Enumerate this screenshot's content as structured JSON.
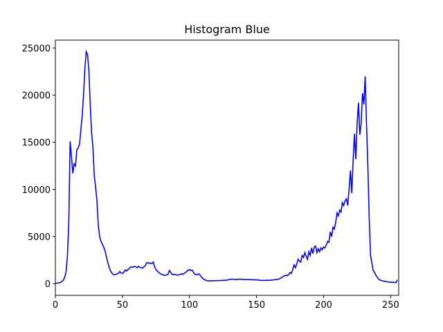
{
  "chart_data": {
    "type": "line",
    "title": "Histogram Blue",
    "x": [
      0,
      1,
      2,
      3,
      4,
      5,
      6,
      7,
      8,
      9,
      10,
      11,
      12,
      13,
      14,
      15,
      16,
      17,
      18,
      19,
      20,
      21,
      22,
      23,
      24,
      25,
      26,
      27,
      28,
      29,
      30,
      31,
      32,
      33,
      34,
      35,
      36,
      37,
      38,
      39,
      40,
      41,
      42,
      43,
      44,
      45,
      46,
      47,
      48,
      49,
      50,
      51,
      52,
      53,
      54,
      55,
      56,
      57,
      58,
      59,
      60,
      61,
      62,
      63,
      64,
      65,
      66,
      67,
      68,
      69,
      70,
      71,
      72,
      73,
      74,
      75,
      76,
      77,
      78,
      79,
      80,
      81,
      82,
      83,
      84,
      85,
      86,
      87,
      88,
      89,
      90,
      91,
      92,
      93,
      94,
      95,
      96,
      97,
      98,
      99,
      100,
      101,
      102,
      103,
      104,
      105,
      106,
      107,
      108,
      109,
      110,
      111,
      112,
      113,
      114,
      115,
      116,
      117,
      118,
      119,
      120,
      121,
      122,
      123,
      124,
      125,
      126,
      127,
      128,
      129,
      130,
      131,
      132,
      133,
      134,
      135,
      136,
      137,
      138,
      139,
      140,
      141,
      142,
      143,
      144,
      145,
      146,
      147,
      148,
      149,
      150,
      151,
      152,
      153,
      154,
      155,
      156,
      157,
      158,
      159,
      160,
      161,
      162,
      163,
      164,
      165,
      166,
      167,
      168,
      169,
      170,
      171,
      172,
      173,
      174,
      175,
      176,
      177,
      178,
      179,
      180,
      181,
      182,
      183,
      184,
      185,
      186,
      187,
      188,
      189,
      190,
      191,
      192,
      193,
      194,
      195,
      196,
      197,
      198,
      199,
      200,
      201,
      202,
      203,
      204,
      205,
      206,
      207,
      208,
      209,
      210,
      211,
      212,
      213,
      214,
      215,
      216,
      217,
      218,
      219,
      220,
      221,
      222,
      223,
      224,
      225,
      226,
      227,
      228,
      229,
      230,
      231,
      232,
      233,
      234,
      235,
      236,
      237,
      238,
      239,
      240,
      241,
      242,
      243,
      244,
      245,
      246,
      247,
      248,
      249,
      250,
      251,
      252,
      253,
      254,
      255
    ],
    "series": [
      {
        "color": "#0000ff",
        "values": [
          50,
          60,
          80,
          100,
          150,
          250,
          400,
          700,
          1300,
          3000,
          6500,
          15100,
          13500,
          11700,
          12700,
          12500,
          14200,
          14400,
          14800,
          16300,
          17800,
          20000,
          22800,
          24600,
          24300,
          22500,
          19000,
          16000,
          14500,
          11500,
          10200,
          8800,
          6200,
          5000,
          4500,
          4200,
          3900,
          3500,
          2900,
          2300,
          1800,
          1400,
          1150,
          1000,
          950,
          1000,
          1050,
          1100,
          1300,
          1150,
          1100,
          1200,
          1450,
          1350,
          1500,
          1600,
          1750,
          1800,
          1750,
          1850,
          1800,
          1700,
          1850,
          1750,
          1700,
          1650,
          1800,
          1900,
          2200,
          2250,
          2150,
          2200,
          2150,
          2300,
          1800,
          1500,
          1350,
          1200,
          1100,
          1000,
          950,
          900,
          900,
          950,
          1000,
          1400,
          1200,
          1000,
          950,
          1000,
          950,
          900,
          950,
          1000,
          1050,
          1000,
          1100,
          1200,
          1300,
          1450,
          1500,
          1400,
          1450,
          1200,
          1000,
          950,
          1000,
          1050,
          900,
          700,
          550,
          450,
          380,
          330,
          300,
          320,
          300,
          330,
          310,
          320,
          340,
          320,
          350,
          330,
          360,
          340,
          380,
          360,
          400,
          420,
          450,
          480,
          500,
          460,
          440,
          470,
          450,
          480,
          500,
          460,
          450,
          470,
          440,
          460,
          430,
          450,
          420,
          440,
          410,
          430,
          400,
          420,
          380,
          360,
          350,
          370,
          340,
          360,
          380,
          350,
          370,
          390,
          400,
          420,
          450,
          430,
          480,
          520,
          600,
          700,
          800,
          850,
          900,
          850,
          1000,
          1200,
          1100,
          1500,
          2000,
          1700,
          2100,
          2600,
          2400,
          2300,
          3000,
          2800,
          3300,
          2900,
          2600,
          3400,
          3000,
          3800,
          3200,
          3900,
          4000,
          3300,
          3700,
          3400,
          3800,
          3600,
          3900,
          3800,
          4100,
          4500,
          4400,
          5500,
          5000,
          6000,
          5800,
          6500,
          7500,
          7200,
          7800,
          7600,
          8600,
          8300,
          8800,
          9000,
          8300,
          10000,
          12000,
          9600,
          13000,
          15900,
          13200,
          17000,
          19200,
          15800,
          17000,
          20200,
          19000,
          22000,
          17000,
          12500,
          7000,
          3000,
          2200,
          1400,
          1200,
          900,
          700,
          500,
          400,
          350,
          300,
          280,
          250,
          220,
          200,
          180,
          170,
          160,
          150,
          140,
          130,
          400
        ]
      }
    ],
    "xlim": [
      0,
      256
    ],
    "ylim": [
      -1230,
      25830
    ],
    "xticks": [
      0,
      50,
      100,
      150,
      200,
      250
    ],
    "yticks": [
      0,
      5000,
      10000,
      15000,
      20000,
      25000
    ]
  }
}
